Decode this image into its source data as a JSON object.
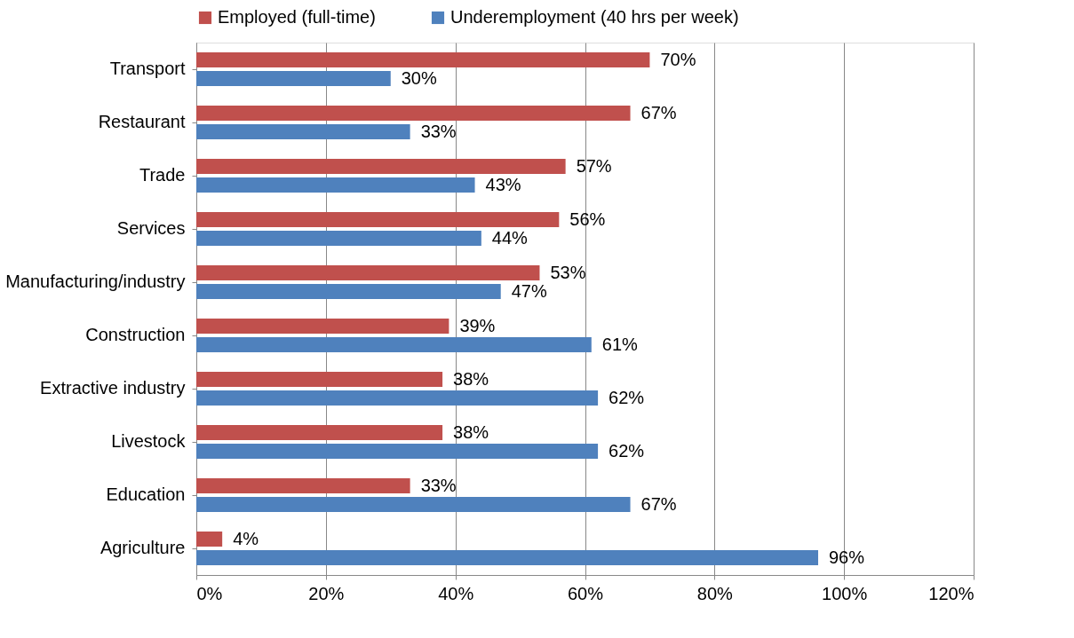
{
  "chart_data": {
    "type": "bar",
    "orientation": "horizontal",
    "categories": [
      "Transport",
      "Restaurant",
      "Trade",
      "Services",
      "Manufacturing/industry",
      "Construction",
      "Extractive industry",
      "Livestock",
      "Education",
      "Agriculture"
    ],
    "series": [
      {
        "name": "Employed (full-time)",
        "color": "#c0504d",
        "values": [
          70,
          67,
          57,
          56,
          53,
          39,
          38,
          38,
          33,
          4
        ],
        "value_labels": [
          "70%",
          "67%",
          "57%",
          "56%",
          "53%",
          "39%",
          "38%",
          "38%",
          "33%",
          "4%"
        ]
      },
      {
        "name": "Underemployment (40 hrs per week)",
        "color": "#4f81bd",
        "values": [
          30,
          33,
          43,
          44,
          47,
          61,
          62,
          62,
          67,
          96
        ],
        "value_labels": [
          "30%",
          "33%",
          "43%",
          "44%",
          "47%",
          "61%",
          "62%",
          "62%",
          "67%",
          "96%"
        ]
      }
    ],
    "xlim": [
      0,
      120
    ],
    "xticks": [
      {
        "value": 0,
        "label": "0%"
      },
      {
        "value": 20,
        "label": "20%"
      },
      {
        "value": 40,
        "label": "40%"
      },
      {
        "value": 60,
        "label": "60%"
      },
      {
        "value": 80,
        "label": "80%"
      },
      {
        "value": 100,
        "label": "100%"
      },
      {
        "value": 120,
        "label": "120%"
      }
    ],
    "grid": "x",
    "legend": "top"
  }
}
